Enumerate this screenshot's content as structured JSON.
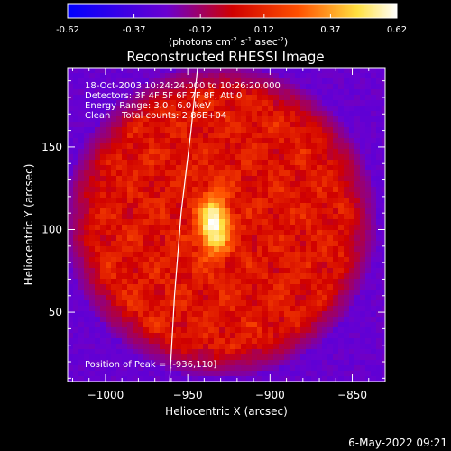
{
  "colorbar": {
    "ticks": [
      "-0.62",
      "-0.37",
      "-0.12",
      "0.12",
      "0.37",
      "0.62"
    ],
    "units_prefix": "(photons cm",
    "units_exp1": "-2",
    "units_mid": " s",
    "units_exp2": "-1",
    "units_mid2": " asec",
    "units_exp3": "-2",
    "units_suffix": ")",
    "range": [
      -0.62,
      0.62
    ],
    "colors": [
      "#0000ff",
      "#6a00d0",
      "#d00000",
      "#ff5000",
      "#ffe040",
      "#ffffff"
    ]
  },
  "footer": {
    "date": "6-May-2022 09:21"
  },
  "chart_data": {
    "type": "heatmap",
    "title": "Reconstructed RHESSI Image",
    "xlabel": "Heliocentric X (arcsec)",
    "ylabel": "Heliocentric Y (arcsec)",
    "xlim": [
      -1023,
      -830
    ],
    "ylim": [
      8,
      198
    ],
    "x_ticks": [
      -1000,
      -950,
      -900,
      -850
    ],
    "x_tick_labels": [
      "−1000",
      "−950",
      "−900",
      "−850"
    ],
    "y_ticks": [
      50,
      100,
      150
    ],
    "y_tick_labels": [
      "50",
      "100",
      "150"
    ],
    "annotations": [
      "18-Oct-2003 10:24:24.000 to 10:26:20.000",
      "Detectors: 3F 4F 5F 6F 7F 8F, Att 0",
      "Energy Range: 3.0 - 6.0 keV",
      "Clean    Total counts: 2.86E+04"
    ],
    "peak_label": "Position of Peak = [-936,110]",
    "peak": [
      -936,
      110
    ],
    "background_disk": {
      "center": [
        -930,
        105
      ],
      "radius": 95,
      "value": 0.05
    },
    "source": {
      "center": [
        -934,
        103
      ],
      "peak_value": 0.62
    },
    "grid": false,
    "limb_curve": [
      [
        -961,
        8
      ],
      [
        -958,
        60
      ],
      [
        -954,
        110
      ],
      [
        -948,
        160
      ],
      [
        -944,
        198
      ]
    ]
  }
}
